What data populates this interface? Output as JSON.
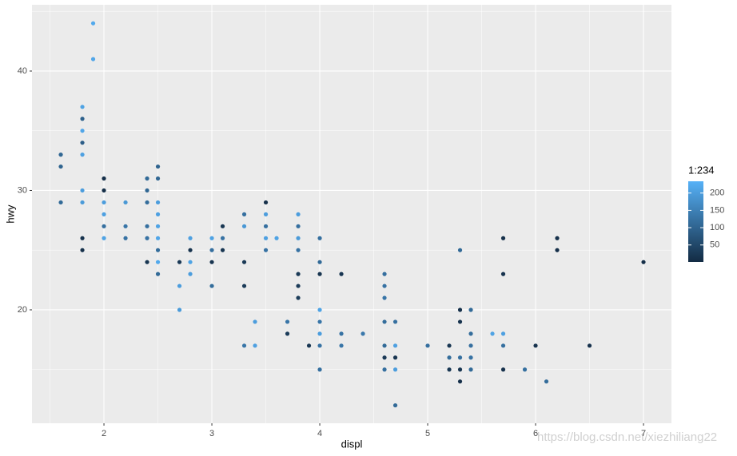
{
  "chart_data": {
    "type": "scatter",
    "x_label": "displ",
    "y_label": "hwy",
    "x": [
      1.6,
      1.6,
      1.6,
      1.8,
      1.8,
      1.8,
      1.8,
      1.8,
      1.8,
      1.8,
      1.8,
      1.8,
      1.9,
      1.9,
      2.0,
      2.0,
      2.0,
      2.0,
      2.0,
      2.0,
      2.2,
      2.2,
      2.2,
      2.4,
      2.4,
      2.4,
      2.4,
      2.4,
      2.4,
      2.5,
      2.5,
      2.5,
      2.5,
      2.5,
      2.5,
      2.5,
      2.5,
      2.5,
      2.7,
      2.7,
      2.7,
      2.8,
      2.8,
      2.8,
      2.8,
      3.0,
      3.0,
      3.0,
      3.0,
      3.1,
      3.1,
      3.1,
      3.3,
      3.3,
      3.3,
      3.3,
      3.3,
      3.4,
      3.4,
      3.5,
      3.5,
      3.5,
      3.5,
      3.5,
      3.6,
      3.7,
      3.7,
      3.8,
      3.8,
      3.8,
      3.8,
      3.8,
      3.8,
      3.8,
      3.9,
      4.0,
      4.0,
      4.0,
      4.0,
      4.0,
      4.0,
      4.0,
      4.0,
      4.2,
      4.2,
      4.2,
      4.4,
      4.6,
      4.6,
      4.6,
      4.6,
      4.6,
      4.6,
      4.6,
      4.7,
      4.7,
      4.7,
      4.7,
      4.7,
      5.0,
      5.2,
      5.2,
      5.2,
      5.3,
      5.3,
      5.3,
      5.3,
      5.3,
      5.3,
      5.4,
      5.4,
      5.4,
      5.4,
      5.4,
      5.6,
      5.7,
      5.7,
      5.7,
      5.7,
      5.7,
      5.9,
      6.0,
      6.1,
      6.2,
      6.2,
      6.5,
      7.0
    ],
    "values": [
      33,
      32,
      29,
      37,
      36,
      35,
      34,
      33,
      30,
      29,
      26,
      25,
      44,
      41,
      31,
      30,
      29,
      28,
      27,
      26,
      29,
      27,
      26,
      31,
      30,
      29,
      27,
      26,
      24,
      32,
      31,
      29,
      28,
      27,
      26,
      25,
      24,
      23,
      24,
      22,
      20,
      26,
      25,
      24,
      23,
      26,
      25,
      24,
      22,
      27,
      26,
      25,
      28,
      27,
      24,
      22,
      17,
      19,
      17,
      29,
      28,
      27,
      26,
      25,
      26,
      19,
      18,
      28,
      27,
      26,
      25,
      23,
      22,
      21,
      17,
      26,
      24,
      23,
      20,
      19,
      18,
      17,
      15,
      23,
      18,
      17,
      18,
      23,
      22,
      21,
      19,
      17,
      16,
      15,
      19,
      17,
      16,
      15,
      12,
      17,
      17,
      16,
      15,
      25,
      20,
      19,
      16,
      15,
      14,
      20,
      18,
      17,
      16,
      15,
      18,
      26,
      23,
      18,
      17,
      15,
      15,
      17,
      14,
      26,
      25,
      17,
      24
    ],
    "color_values": [
      105,
      100,
      110,
      210,
      95,
      215,
      90,
      205,
      200,
      195,
      15,
      12,
      220,
      215,
      10,
      8,
      200,
      205,
      120,
      210,
      190,
      130,
      125,
      110,
      105,
      115,
      120,
      125,
      20,
      100,
      105,
      200,
      205,
      210,
      215,
      115,
      220,
      110,
      25,
      200,
      195,
      205,
      15,
      210,
      200,
      210,
      120,
      18,
      115,
      22,
      125,
      20,
      120,
      190,
      25,
      28,
      130,
      200,
      205,
      10,
      200,
      120,
      205,
      125,
      210,
      130,
      30,
      200,
      120,
      195,
      125,
      25,
      28,
      30,
      22,
      120,
      110,
      18,
      210,
      130,
      200,
      125,
      120,
      20,
      125,
      130,
      135,
      120,
      125,
      130,
      115,
      110,
      25,
      120,
      120,
      205,
      18,
      200,
      110,
      120,
      20,
      115,
      22,
      110,
      12,
      15,
      120,
      18,
      10,
      110,
      115,
      120,
      125,
      110,
      210,
      12,
      15,
      205,
      120,
      14,
      120,
      15,
      115,
      12,
      10,
      14,
      8
    ],
    "xlim": [
      1.333,
      7.259
    ],
    "ylim": [
      10.5,
      45.55
    ],
    "xticks": [
      2,
      3,
      4,
      5,
      6,
      7
    ],
    "yticks": [
      20,
      30,
      40
    ],
    "grid": true,
    "colorbar": {
      "title": "1:234",
      "lim": [
        1,
        234
      ],
      "ticks": [
        50,
        100,
        150,
        200
      ],
      "low": "#132B43",
      "high": "#56B1F7"
    },
    "watermark": "https://blog.csdn.net/xiezhiliang22"
  }
}
